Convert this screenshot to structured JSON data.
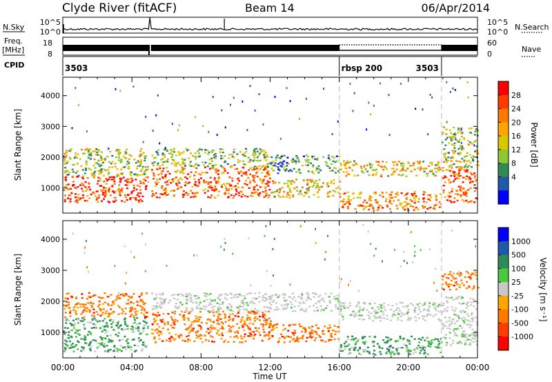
{
  "header": {
    "station": "Clyde River (fitACF)",
    "beam": "Beam 14",
    "date": "06/Apr/2014"
  },
  "colors": {
    "background": "#ffffff",
    "axis": "#000000",
    "ground_scatter": "#c8c8c8"
  },
  "chart_data": [
    {
      "type": "line",
      "id": "noise",
      "left_label": "N.Sky",
      "right_label": "N.Search",
      "left_ticks": [
        "10^5",
        "10^0"
      ],
      "right_ticks": [
        "10^5",
        "10^0"
      ],
      "x_range_hours": [
        0,
        24
      ],
      "series": [
        {
          "name": "N.Sky",
          "style": "solid",
          "x": [
            0,
            0.05,
            4.98,
            5.02,
            5.08,
            9.35,
            9.4,
            24
          ],
          "y_level": [
            0.38,
            0.78,
            0.78,
            0.99,
            0.78,
            0.78,
            0.2,
            0.78
          ]
        },
        {
          "name": "N.Search",
          "style": "dotted"
        }
      ]
    },
    {
      "type": "line",
      "id": "frequency",
      "left_label": "Freq.",
      "left_unit": "[MHz]",
      "right_label": "Nave",
      "left_ticks": [
        "18",
        "8"
      ],
      "right_ticks": [
        "60",
        "0"
      ],
      "series": [
        {
          "name": "Freq.",
          "style": "solid",
          "band": true,
          "x": [
            0,
            24
          ],
          "gap_hours": [
            4.97,
            5.08
          ],
          "thin_segment_hours": [
            16.0,
            21.92
          ]
        },
        {
          "name": "Nave",
          "style": "dotted",
          "x": [
            16.0,
            21.92
          ],
          "y_level": 0.12
        }
      ]
    },
    {
      "type": "table",
      "id": "cpid",
      "label": "CPID",
      "segments": [
        {
          "start": 0,
          "end": 16.0,
          "label": "3503",
          "label_pos": "left"
        },
        {
          "start": 16.0,
          "end": 21.92,
          "label": "rbsp 200",
          "label_pos": "left"
        },
        {
          "start": 21.92,
          "end": 24,
          "label": "3503",
          "label_pos": "right-of-start"
        }
      ]
    },
    {
      "type": "heatmap",
      "id": "power",
      "ylabel": "Slant Range [km]",
      "yticks": [
        1000,
        2000,
        3000,
        4000
      ],
      "ylim": [
        180,
        4600
      ],
      "xlim_hours": [
        0,
        24
      ],
      "cbar_label": "Power [dB]",
      "cbar_ticks": [
        "28",
        "24",
        "20",
        "16",
        "12",
        "8",
        "4"
      ],
      "cbar_colors": [
        "#ff0000",
        "#ff3c00",
        "#ff7800",
        "#ffa500",
        "#d8c800",
        "#8fc830",
        "#2e8b57",
        "#1e5aaa",
        "#0000ff"
      ],
      "scatter_bands": [
        {
          "h0": 0,
          "h1": 4.95,
          "lo": 550,
          "hi": 1400,
          "level": 0.85
        },
        {
          "h0": 0,
          "h1": 4.95,
          "lo": 1400,
          "hi": 2300,
          "level": 0.45
        },
        {
          "h0": 5.1,
          "h1": 12,
          "lo": 700,
          "hi": 1700,
          "level": 0.75
        },
        {
          "h0": 5.1,
          "h1": 12,
          "lo": 1700,
          "hi": 2300,
          "level": 0.4
        },
        {
          "h0": 12,
          "h1": 16,
          "lo": 700,
          "hi": 1300,
          "level": 0.55
        },
        {
          "h0": 12,
          "h1": 16,
          "lo": 1500,
          "hi": 2100,
          "level": 0.3
        },
        {
          "h0": 16,
          "h1": 21.9,
          "lo": 300,
          "hi": 900,
          "level": 0.7
        },
        {
          "h0": 16,
          "h1": 21.9,
          "lo": 1400,
          "hi": 1900,
          "level": 0.55
        },
        {
          "h0": 21.9,
          "h1": 24,
          "lo": 550,
          "hi": 1700,
          "level": 0.8
        },
        {
          "h0": 21.9,
          "h1": 24,
          "lo": 1700,
          "hi": 3000,
          "level": 0.45
        }
      ]
    },
    {
      "type": "heatmap",
      "id": "velocity",
      "ylabel": "Slant Range [km]",
      "yticks": [
        1000,
        2000,
        3000,
        4000
      ],
      "ylim": [
        180,
        4600
      ],
      "xlim_hours": [
        0,
        24
      ],
      "xticks": [
        "00:00",
        "04:00",
        "08:00",
        "12:00",
        "16:00",
        "20:00",
        "00:00"
      ],
      "xlabel": "Time UT",
      "cbar_label": "Velocity [m s⁻¹]",
      "cbar_ticks": [
        "1000",
        "500",
        "100",
        "25",
        "-25",
        "-100",
        "-500",
        "-1000"
      ],
      "cbar_colors": [
        "#0000ff",
        "#1e5aaa",
        "#2e8b57",
        "#4cc83c",
        "#c8c8c8",
        "#ffa500",
        "#ff7800",
        "#ff3c00",
        "#ff0000"
      ],
      "scatter_bands": [
        {
          "h0": 0,
          "h1": 4.95,
          "lo": 400,
          "hi": 1500,
          "vel": "green"
        },
        {
          "h0": 0,
          "h1": 4.95,
          "lo": 1500,
          "hi": 2300,
          "vel": "orange"
        },
        {
          "h0": 5.1,
          "h1": 12,
          "lo": 700,
          "hi": 1700,
          "vel": "orange"
        },
        {
          "h0": 5.1,
          "h1": 16,
          "lo": 1700,
          "hi": 2300,
          "vel": "grey"
        },
        {
          "h0": 12,
          "h1": 16,
          "lo": 700,
          "hi": 1300,
          "vel": "orange"
        },
        {
          "h0": 16,
          "h1": 21.9,
          "lo": 300,
          "hi": 900,
          "vel": "green"
        },
        {
          "h0": 16,
          "h1": 21.9,
          "lo": 1400,
          "hi": 2000,
          "vel": "grey"
        },
        {
          "h0": 21.9,
          "h1": 24,
          "lo": 600,
          "hi": 2200,
          "vel": "grey"
        },
        {
          "h0": 21.9,
          "h1": 24,
          "lo": 2400,
          "hi": 3000,
          "vel": "orange"
        }
      ]
    }
  ]
}
